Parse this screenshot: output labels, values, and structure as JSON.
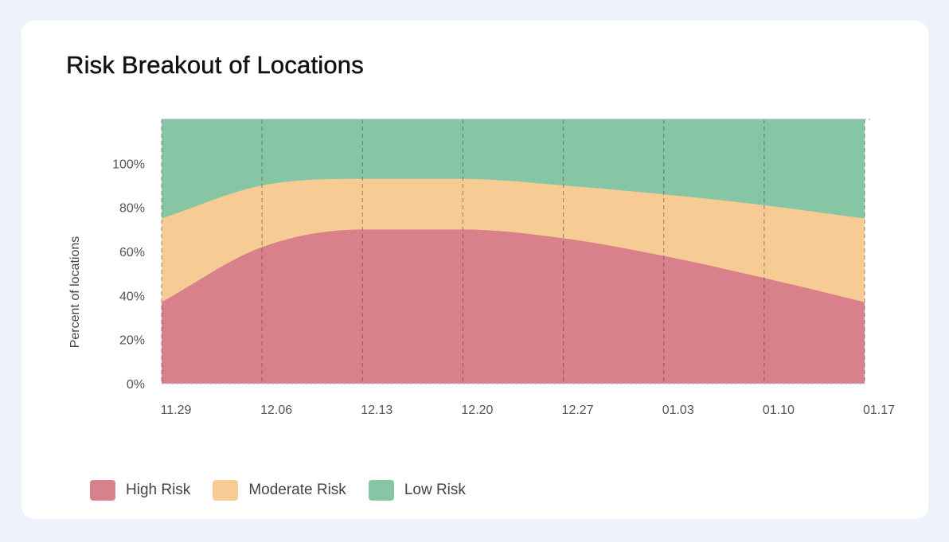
{
  "title": "Risk Breakout of Locations",
  "colors": {
    "page_background": "#eef2fa",
    "card_background": "#ffffff",
    "high": "#d9818a",
    "moderate": "#f7cb94",
    "low": "#86c6a4"
  },
  "legend": [
    {
      "label": "High Risk",
      "color": "#d9818a"
    },
    {
      "label": "Moderate Risk",
      "color": "#f7cb94"
    },
    {
      "label": "Low Risk",
      "color": "#86c6a4"
    }
  ],
  "chart_data": {
    "type": "area",
    "stacked": true,
    "title": "Risk Breakout of Locations",
    "xlabel": "",
    "ylabel": "Percent of locations",
    "categories": [
      "11.29",
      "12.06",
      "12.13",
      "12.20",
      "12.27",
      "01.03",
      "01.10",
      "01.17"
    ],
    "yticks": [
      "0%",
      "20%",
      "40%",
      "60%",
      "80%",
      "100%"
    ],
    "ylim": [
      0,
      120
    ],
    "grid": "vertical dashed",
    "legend_position": "bottom-left",
    "series": [
      {
        "name": "High Risk",
        "color": "#d9818a",
        "values": [
          37,
          62,
          70,
          70,
          66,
          58,
          48,
          37
        ]
      },
      {
        "name": "Moderate Risk",
        "color": "#f7cb94",
        "values": [
          38,
          28,
          23,
          23,
          24,
          28,
          33,
          38
        ]
      },
      {
        "name": "Low Risk",
        "color": "#86c6a4",
        "values": [
          45,
          30,
          27,
          27,
          30,
          34,
          39,
          45
        ]
      }
    ]
  }
}
